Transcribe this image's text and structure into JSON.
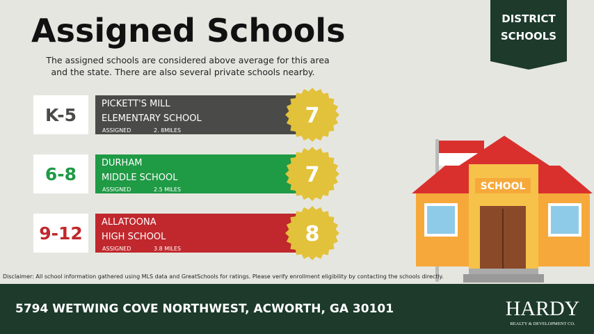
{
  "header": {
    "title": "Assigned Schools",
    "subtitle": [
      "The assigned schools are considered above average for this area",
      "and the state. There are also several private schools nearby."
    ]
  },
  "badge": [
    "DISTRICT",
    "SCHOOLS"
  ],
  "schools": [
    {
      "grade": "K-5",
      "name": [
        "PICKETT'S MILL",
        "ELEMENTARY SCHOOL"
      ],
      "status": "ASSIGNED",
      "distance": "2. 8MILES",
      "rating": 7
    },
    {
      "grade": "6-8",
      "name": [
        "DURHAM",
        "MIDDLE SCHOOL"
      ],
      "status": "ASSIGNED",
      "distance": "2.5 MILES",
      "rating": 7
    },
    {
      "grade": "9-12",
      "name": [
        "ALLATOONA",
        "HIGH SCHOOL"
      ],
      "status": "ASSIGNED",
      "distance": "3.8 MILES",
      "rating": 8
    }
  ],
  "illustration": {
    "sign": "SCHOOL"
  },
  "disclaimer": "Disclaimer: All school information gathered using MLS data and GreatSchools for ratings. Please verify enrollment eligibility by contacting the schools directly.",
  "footer": {
    "address": "5794 WETWING COVE NORTHWEST, ACWORTH, GA 30101",
    "logo": "HARDY",
    "tagline": "REALTY & DEVELOPMENT CO."
  }
}
